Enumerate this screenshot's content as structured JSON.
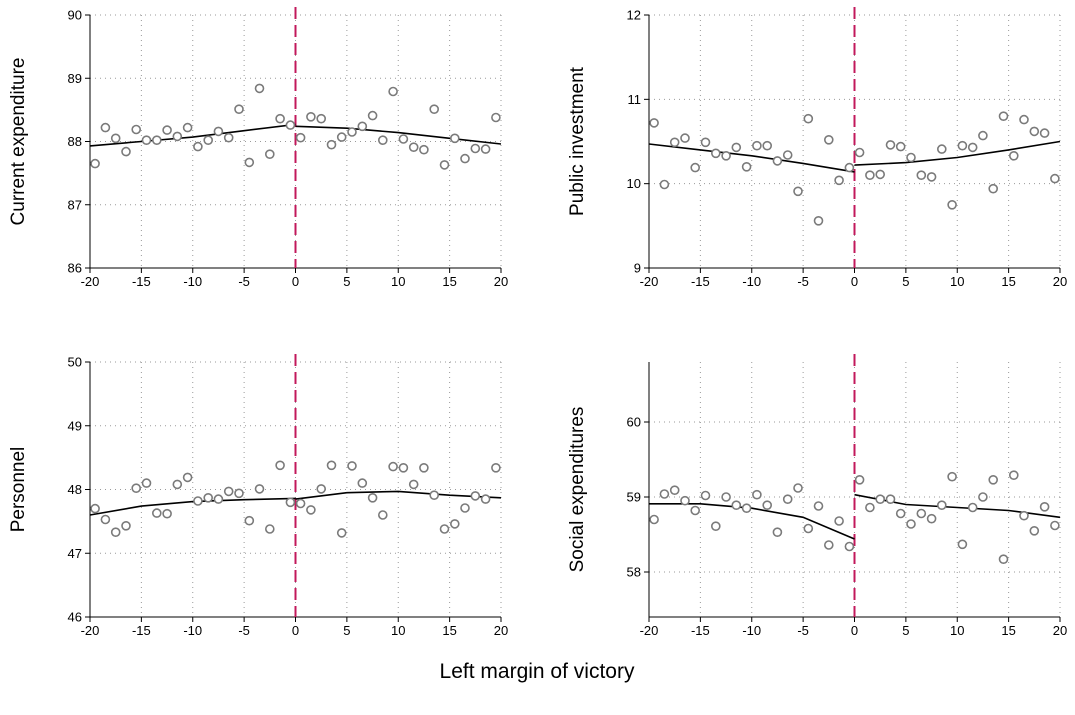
{
  "chart_data": [
    {
      "type": "scatter",
      "ylabel": "Current expenditure",
      "xlim": [
        -20,
        20
      ],
      "ylim": [
        86,
        90
      ],
      "xticks": [
        -20,
        -15,
        -10,
        -5,
        0,
        5,
        10,
        15,
        20
      ],
      "yticks": [
        86,
        87,
        88,
        89,
        90
      ],
      "cutoff": 0,
      "points": [
        [
          -19.5,
          87.65
        ],
        [
          -18.5,
          88.22
        ],
        [
          -17.5,
          88.05
        ],
        [
          -16.5,
          87.84
        ],
        [
          -15.5,
          88.19
        ],
        [
          -14.5,
          88.02
        ],
        [
          -13.5,
          88.02
        ],
        [
          -12.5,
          88.18
        ],
        [
          -11.5,
          88.08
        ],
        [
          -10.5,
          88.22
        ],
        [
          -9.5,
          87.92
        ],
        [
          -8.5,
          88.02
        ],
        [
          -7.5,
          88.16
        ],
        [
          -6.5,
          88.06
        ],
        [
          -5.5,
          88.51
        ],
        [
          -4.5,
          87.67
        ],
        [
          -3.5,
          88.84
        ],
        [
          -2.5,
          87.8
        ],
        [
          -1.5,
          88.36
        ],
        [
          -0.5,
          88.26
        ],
        [
          0.5,
          88.06
        ],
        [
          1.5,
          88.39
        ],
        [
          2.5,
          88.36
        ],
        [
          3.5,
          87.95
        ],
        [
          4.5,
          88.07
        ],
        [
          5.5,
          88.15
        ],
        [
          6.5,
          88.24
        ],
        [
          7.5,
          88.41
        ],
        [
          8.5,
          88.02
        ],
        [
          9.5,
          88.79
        ],
        [
          10.5,
          88.04
        ],
        [
          11.5,
          87.91
        ],
        [
          12.5,
          87.87
        ],
        [
          13.5,
          88.51
        ],
        [
          14.5,
          87.63
        ],
        [
          15.5,
          88.05
        ],
        [
          16.5,
          87.73
        ],
        [
          17.5,
          87.89
        ],
        [
          18.5,
          87.88
        ],
        [
          19.5,
          88.38
        ]
      ],
      "fit_left": [
        [
          -20,
          87.93
        ],
        [
          -15,
          88.0
        ],
        [
          -10,
          88.07
        ],
        [
          -5,
          88.17
        ],
        [
          0,
          88.27
        ]
      ],
      "fit_right": [
        [
          0,
          88.24
        ],
        [
          5,
          88.21
        ],
        [
          10,
          88.14
        ],
        [
          15,
          88.05
        ],
        [
          20,
          87.96
        ]
      ]
    },
    {
      "type": "scatter",
      "ylabel": "Public investment",
      "xlim": [
        -20,
        20
      ],
      "ylim": [
        9,
        12
      ],
      "xticks": [
        -20,
        -15,
        -10,
        -5,
        0,
        5,
        10,
        15,
        20
      ],
      "yticks": [
        9,
        10,
        11,
        12
      ],
      "cutoff": 0,
      "points": [
        [
          -19.5,
          10.72
        ],
        [
          -18.5,
          9.99
        ],
        [
          -17.5,
          10.49
        ],
        [
          -16.5,
          10.54
        ],
        [
          -15.5,
          10.19
        ],
        [
          -14.5,
          10.49
        ],
        [
          -13.5,
          10.36
        ],
        [
          -12.5,
          10.33
        ],
        [
          -11.5,
          10.43
        ],
        [
          -10.5,
          10.2
        ],
        [
          -9.5,
          10.45
        ],
        [
          -8.5,
          10.45
        ],
        [
          -7.5,
          10.27
        ],
        [
          -6.5,
          10.34
        ],
        [
          -5.5,
          9.91
        ],
        [
          -4.5,
          10.77
        ],
        [
          -3.5,
          9.56
        ],
        [
          -2.5,
          10.52
        ],
        [
          -1.5,
          10.04
        ],
        [
          -0.5,
          10.19
        ],
        [
          0.5,
          10.37
        ],
        [
          1.5,
          10.1
        ],
        [
          2.5,
          10.11
        ],
        [
          3.5,
          10.46
        ],
        [
          4.5,
          10.44
        ],
        [
          5.5,
          10.31
        ],
        [
          6.5,
          10.1
        ],
        [
          7.5,
          10.08
        ],
        [
          8.5,
          10.41
        ],
        [
          9.5,
          9.75
        ],
        [
          10.5,
          10.45
        ],
        [
          11.5,
          10.43
        ],
        [
          12.5,
          10.57
        ],
        [
          13.5,
          9.94
        ],
        [
          14.5,
          10.8
        ],
        [
          15.5,
          10.33
        ],
        [
          16.5,
          10.76
        ],
        [
          17.5,
          10.62
        ],
        [
          18.5,
          10.6
        ],
        [
          19.5,
          10.06
        ]
      ],
      "fit_left": [
        [
          -20,
          10.47
        ],
        [
          -15,
          10.4
        ],
        [
          -10,
          10.33
        ],
        [
          -5,
          10.24
        ],
        [
          0,
          10.14
        ]
      ],
      "fit_right": [
        [
          0,
          10.22
        ],
        [
          5,
          10.25
        ],
        [
          10,
          10.31
        ],
        [
          15,
          10.4
        ],
        [
          20,
          10.5
        ]
      ]
    },
    {
      "type": "scatter",
      "ylabel": "Personnel",
      "xlim": [
        -20,
        20
      ],
      "ylim": [
        46,
        50
      ],
      "xticks": [
        -20,
        -15,
        -10,
        -5,
        0,
        5,
        10,
        15,
        20
      ],
      "yticks": [
        46,
        47,
        48,
        49,
        50
      ],
      "cutoff": 0,
      "points": [
        [
          -19.5,
          47.7
        ],
        [
          -18.5,
          47.53
        ],
        [
          -17.5,
          47.33
        ],
        [
          -16.5,
          47.43
        ],
        [
          -15.5,
          48.02
        ],
        [
          -14.5,
          48.1
        ],
        [
          -13.5,
          47.63
        ],
        [
          -12.5,
          47.62
        ],
        [
          -11.5,
          48.08
        ],
        [
          -10.5,
          48.19
        ],
        [
          -9.5,
          47.82
        ],
        [
          -8.5,
          47.87
        ],
        [
          -7.5,
          47.85
        ],
        [
          -6.5,
          47.97
        ],
        [
          -5.5,
          47.94
        ],
        [
          -4.5,
          47.51
        ],
        [
          -3.5,
          48.01
        ],
        [
          -2.5,
          47.38
        ],
        [
          -1.5,
          48.38
        ],
        [
          -0.5,
          47.8
        ],
        [
          0.5,
          47.78
        ],
        [
          1.5,
          47.68
        ],
        [
          2.5,
          48.01
        ],
        [
          3.5,
          48.38
        ],
        [
          4.5,
          47.32
        ],
        [
          5.5,
          48.37
        ],
        [
          6.5,
          48.1
        ],
        [
          7.5,
          47.87
        ],
        [
          8.5,
          47.6
        ],
        [
          9.5,
          48.36
        ],
        [
          10.5,
          48.34
        ],
        [
          11.5,
          48.08
        ],
        [
          12.5,
          48.34
        ],
        [
          13.5,
          47.91
        ],
        [
          14.5,
          47.38
        ],
        [
          15.5,
          47.46
        ],
        [
          16.5,
          47.71
        ],
        [
          17.5,
          47.9
        ],
        [
          18.5,
          47.85
        ],
        [
          19.5,
          48.34
        ]
      ],
      "fit_left": [
        [
          -20,
          47.6
        ],
        [
          -15,
          47.74
        ],
        [
          -10,
          47.81
        ],
        [
          -5,
          47.84
        ],
        [
          0,
          47.86
        ]
      ],
      "fit_right": [
        [
          0,
          47.85
        ],
        [
          5,
          47.95
        ],
        [
          10,
          47.97
        ],
        [
          15,
          47.91
        ],
        [
          20,
          47.87
        ]
      ]
    },
    {
      "type": "scatter",
      "ylabel": "Social expenditures",
      "xlim": [
        -20,
        20
      ],
      "ylim": [
        57.4,
        60.8
      ],
      "xticks": [
        -20,
        -15,
        -10,
        -5,
        0,
        5,
        10,
        15,
        20
      ],
      "yticks": [
        58,
        59,
        60
      ],
      "cutoff": 0,
      "points": [
        [
          -19.5,
          58.7
        ],
        [
          -18.5,
          59.04
        ],
        [
          -17.5,
          59.09
        ],
        [
          -16.5,
          58.95
        ],
        [
          -15.5,
          58.82
        ],
        [
          -14.5,
          59.02
        ],
        [
          -13.5,
          58.61
        ],
        [
          -12.5,
          59.0
        ],
        [
          -11.5,
          58.89
        ],
        [
          -10.5,
          58.85
        ],
        [
          -9.5,
          59.03
        ],
        [
          -8.5,
          58.89
        ],
        [
          -7.5,
          58.53
        ],
        [
          -6.5,
          58.97
        ],
        [
          -5.5,
          59.12
        ],
        [
          -4.5,
          58.58
        ],
        [
          -3.5,
          58.88
        ],
        [
          -2.5,
          58.36
        ],
        [
          -1.5,
          58.68
        ],
        [
          -0.5,
          58.34
        ],
        [
          0.5,
          59.23
        ],
        [
          1.5,
          58.86
        ],
        [
          2.5,
          58.97
        ],
        [
          3.5,
          58.97
        ],
        [
          4.5,
          58.78
        ],
        [
          5.5,
          58.64
        ],
        [
          6.5,
          58.78
        ],
        [
          7.5,
          58.71
        ],
        [
          8.5,
          58.89
        ],
        [
          9.5,
          59.27
        ],
        [
          10.5,
          58.37
        ],
        [
          11.5,
          58.86
        ],
        [
          12.5,
          59.0
        ],
        [
          13.5,
          59.23
        ],
        [
          14.5,
          58.17
        ],
        [
          15.5,
          59.29
        ],
        [
          16.5,
          58.75
        ],
        [
          17.5,
          58.55
        ],
        [
          18.5,
          58.87
        ],
        [
          19.5,
          58.62
        ]
      ],
      "fit_left": [
        [
          -20,
          58.91
        ],
        [
          -15,
          58.91
        ],
        [
          -10,
          58.85
        ],
        [
          -5,
          58.73
        ],
        [
          0,
          58.44
        ]
      ],
      "fit_right": [
        [
          0,
          59.03
        ],
        [
          5,
          58.9
        ],
        [
          10,
          58.86
        ],
        [
          15,
          58.82
        ],
        [
          20,
          58.73
        ]
      ]
    }
  ],
  "xlabel": "Left margin of victory"
}
